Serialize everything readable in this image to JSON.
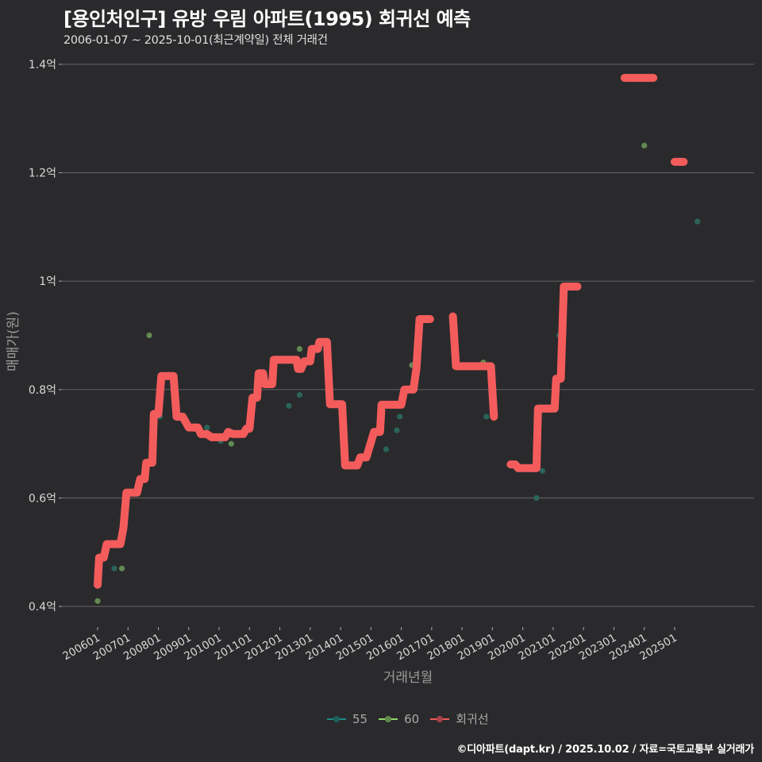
{
  "header": {
    "title": "[용인처인구] 유방 우림 아파트(1995) 회귀선 예측",
    "subtitle": "2006-01-07 ~ 2025-10-01(최근계약일) 전체 거래건"
  },
  "legend": {
    "items": [
      {
        "label": "55",
        "color": "#1f8a86"
      },
      {
        "label": "60",
        "color": "#8fd86a"
      },
      {
        "label": "회귀선",
        "color": "#f15b5b"
      }
    ]
  },
  "caption": "©디아파트(dapt.kr) / 2025.10.02 / 자료=국토교통부 실거래가",
  "colors": {
    "background": "#2a2a2c",
    "grid": "#5c5c5e",
    "regression": "#f45c5c",
    "s55": "#2a6e63",
    "s60": "#6c9a5a"
  },
  "chart_data": {
    "type": "line+scatter",
    "title": "[용인처인구] 유방 우림 아파트(1995) 회귀선 예측",
    "subtitle": "2006-01-07 ~ 2025-10-01(최근계약일) 전체 거래건",
    "xlabel": "거래년월",
    "ylabel": "매매가(원)",
    "ylim": [
      0.4,
      1.4
    ],
    "y_unit": "억",
    "grid": true,
    "legend_position": "bottom",
    "y_ticks": [
      "0.4억",
      "0.6억",
      "0.8억",
      "1억",
      "1.2억",
      "1.4억"
    ],
    "y_tick_values": [
      0.4,
      0.6,
      0.8,
      1.0,
      1.2,
      1.4
    ],
    "x_ticks": [
      "200601",
      "200701",
      "200801",
      "200901",
      "201001",
      "201101",
      "201201",
      "201301",
      "201401",
      "201501",
      "201601",
      "201701",
      "201801",
      "201901",
      "202001",
      "202101",
      "202201",
      "202301",
      "202401",
      "202501"
    ],
    "series": [
      {
        "name": "회귀선",
        "type": "line",
        "segments": [
          [
            [
              2006.0,
              0.44
            ],
            [
              2006.05,
              0.49
            ],
            [
              2006.2,
              0.49
            ],
            [
              2006.3,
              0.515
            ],
            [
              2006.75,
              0.515
            ],
            [
              2006.85,
              0.545
            ],
            [
              2006.95,
              0.61
            ],
            [
              2007.3,
              0.61
            ],
            [
              2007.4,
              0.635
            ],
            [
              2007.55,
              0.635
            ],
            [
              2007.6,
              0.665
            ],
            [
              2007.8,
              0.665
            ],
            [
              2007.85,
              0.755
            ],
            [
              2008.0,
              0.755
            ],
            [
              2008.1,
              0.825
            ],
            [
              2008.5,
              0.825
            ],
            [
              2008.6,
              0.75
            ],
            [
              2008.8,
              0.75
            ],
            [
              2008.9,
              0.74
            ],
            [
              2009.0,
              0.73
            ],
            [
              2009.3,
              0.73
            ],
            [
              2009.4,
              0.718
            ],
            [
              2009.6,
              0.718
            ],
            [
              2009.75,
              0.712
            ],
            [
              2010.2,
              0.712
            ],
            [
              2010.3,
              0.722
            ],
            [
              2010.45,
              0.718
            ],
            [
              2010.8,
              0.718
            ],
            [
              2010.9,
              0.728
            ],
            [
              2011.0,
              0.728
            ],
            [
              2011.1,
              0.785
            ],
            [
              2011.25,
              0.785
            ],
            [
              2011.3,
              0.83
            ],
            [
              2011.45,
              0.83
            ],
            [
              2011.5,
              0.81
            ],
            [
              2011.75,
              0.81
            ],
            [
              2011.8,
              0.855
            ],
            [
              2012.55,
              0.855
            ],
            [
              2012.6,
              0.838
            ],
            [
              2012.7,
              0.838
            ],
            [
              2012.8,
              0.852
            ],
            [
              2013.0,
              0.852
            ],
            [
              2013.05,
              0.875
            ],
            [
              2013.25,
              0.875
            ],
            [
              2013.3,
              0.888
            ],
            [
              2013.55,
              0.888
            ],
            [
              2013.65,
              0.773
            ],
            [
              2014.05,
              0.773
            ],
            [
              2014.15,
              0.66
            ],
            [
              2014.55,
              0.66
            ],
            [
              2014.65,
              0.675
            ],
            [
              2014.85,
              0.675
            ],
            [
              2015.1,
              0.722
            ],
            [
              2015.3,
              0.722
            ],
            [
              2015.35,
              0.772
            ],
            [
              2016.0,
              0.772
            ],
            [
              2016.1,
              0.8
            ],
            [
              2016.4,
              0.8
            ],
            [
              2016.5,
              0.84
            ],
            [
              2016.6,
              0.93
            ],
            [
              2016.95,
              0.93
            ]
          ],
          [
            [
              2017.7,
              0.935
            ],
            [
              2017.8,
              0.843
            ],
            [
              2018.95,
              0.843
            ],
            [
              2019.05,
              0.75
            ]
          ],
          [
            [
              2019.6,
              0.662
            ],
            [
              2019.75,
              0.662
            ],
            [
              2019.85,
              0.655
            ],
            [
              2020.45,
              0.655
            ],
            [
              2020.5,
              0.765
            ],
            [
              2021.05,
              0.765
            ],
            [
              2021.1,
              0.82
            ],
            [
              2021.25,
              0.82
            ],
            [
              2021.35,
              0.99
            ],
            [
              2021.8,
              0.99
            ]
          ],
          [
            [
              2023.35,
              1.375
            ],
            [
              2024.3,
              1.375
            ]
          ],
          [
            [
              2025.0,
              1.22
            ],
            [
              2025.3,
              1.22
            ]
          ]
        ]
      },
      {
        "name": "55",
        "type": "scatter",
        "points": [
          [
            2006.55,
            0.47
          ],
          [
            2008.05,
            0.75
          ],
          [
            2009.6,
            0.73
          ],
          [
            2010.05,
            0.705
          ],
          [
            2012.3,
            0.77
          ],
          [
            2012.65,
            0.79
          ],
          [
            2015.5,
            0.69
          ],
          [
            2015.85,
            0.725
          ],
          [
            2015.95,
            0.75
          ],
          [
            2018.8,
            0.75
          ],
          [
            2020.45,
            0.6
          ],
          [
            2020.65,
            0.65
          ],
          [
            2021.2,
            0.9
          ],
          [
            2025.75,
            1.11
          ]
        ]
      },
      {
        "name": "60",
        "type": "scatter",
        "points": [
          [
            2006.0,
            0.41
          ],
          [
            2006.8,
            0.47
          ],
          [
            2007.7,
            0.9
          ],
          [
            2010.4,
            0.7
          ],
          [
            2012.65,
            0.875
          ],
          [
            2016.35,
            0.845
          ],
          [
            2018.7,
            0.85
          ],
          [
            2024.0,
            1.25
          ]
        ]
      }
    ]
  }
}
